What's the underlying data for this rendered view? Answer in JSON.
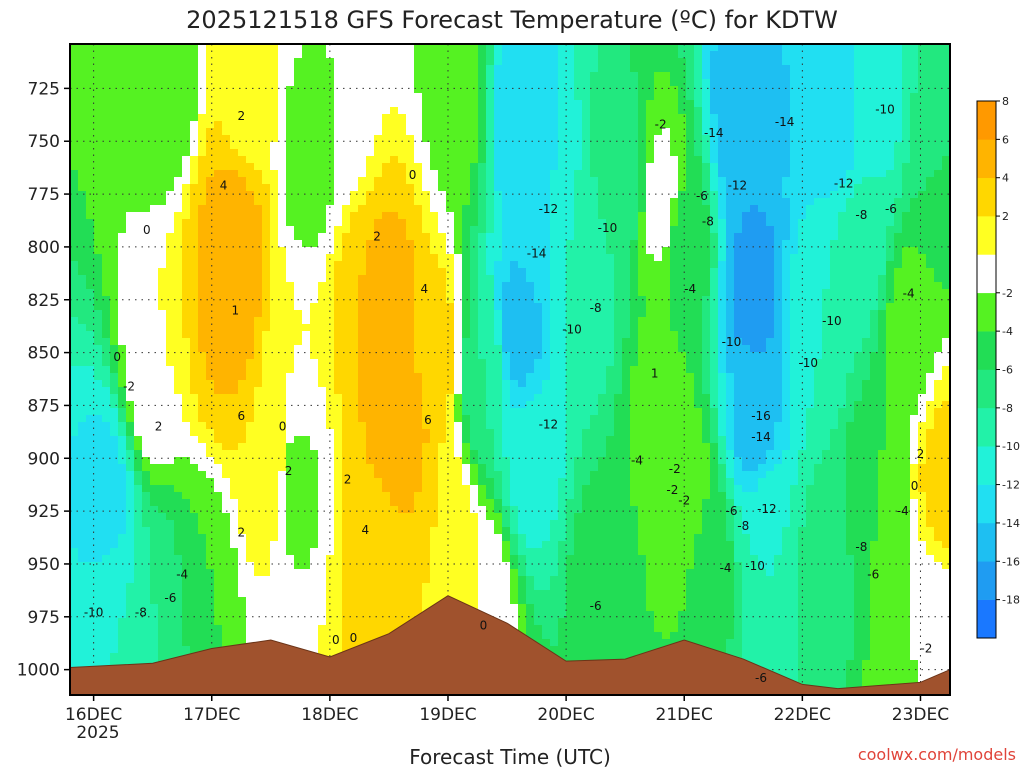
{
  "chart_data": {
    "type": "heatmap",
    "title": "2025121518 GFS Forecast Temperature (ºC) for KDTW",
    "xlabel": "Forecast Time (UTC)",
    "credit": "coolwx.com/models",
    "y_axis": {
      "label": "",
      "ticks": [
        725,
        750,
        775,
        800,
        825,
        850,
        875,
        900,
        925,
        950,
        975,
        1000
      ],
      "range": [
        1012,
        704
      ]
    },
    "x_axis": {
      "ticks": [
        "16DEC",
        "17DEC",
        "18DEC",
        "19DEC",
        "20DEC",
        "21DEC",
        "22DEC",
        "23DEC"
      ],
      "year_label": "2025",
      "range_days": [
        -0.2,
        7.25
      ]
    },
    "colorbar": {
      "levels": [
        -20,
        -18,
        -16,
        -14,
        -12,
        -10,
        -8,
        -6,
        -4,
        -2,
        0,
        2,
        4,
        6,
        8,
        10
      ],
      "tick_labels": [
        -18,
        -16,
        -14,
        -12,
        -10,
        -8,
        -6,
        -4,
        -2,
        2,
        4,
        6,
        8
      ],
      "colors": [
        "#1a78ff",
        "#1f9cf2",
        "#1ebff2",
        "#21dff2",
        "#21f2d9",
        "#22f2a8",
        "#22e87f",
        "#22dd55",
        "#55f222",
        "#ffffff",
        "#ffff22",
        "#ffd700",
        "#ffb400",
        "#ff9900"
      ]
    },
    "terrain_color": "#a0522d",
    "surface_pressure": {
      "t": [
        -0.2,
        0.5,
        1.0,
        1.5,
        2.0,
        2.5,
        3.0,
        3.5,
        4.0,
        4.5,
        5.0,
        5.5,
        6.0,
        6.3,
        7.0,
        7.25
      ],
      "p": [
        999,
        997,
        990,
        986,
        994,
        983,
        965,
        978,
        996,
        995,
        986,
        995,
        1007,
        1009,
        1006,
        1000
      ]
    },
    "temperature_points": [
      {
        "t": 0.1,
        "p": 920,
        "temp": -13
      },
      {
        "t": 0.2,
        "p": 975,
        "temp": -10
      },
      {
        "t": 0.6,
        "p": 975,
        "temp": -8
      },
      {
        "t": 0.6,
        "p": 720,
        "temp": -4
      },
      {
        "t": 0.5,
        "p": 860,
        "temp": 0
      },
      {
        "t": 0.9,
        "p": 960,
        "temp": -4
      },
      {
        "t": 1.1,
        "p": 835,
        "temp": 4
      },
      {
        "t": 1.15,
        "p": 820,
        "temp": 6
      },
      {
        "t": 1.2,
        "p": 795,
        "temp": 5
      },
      {
        "t": 1.3,
        "p": 730,
        "temp": 1
      },
      {
        "t": 1.5,
        "p": 900,
        "temp": 2
      },
      {
        "t": 1.7,
        "p": 860,
        "temp": 0
      },
      {
        "t": 1.8,
        "p": 760,
        "temp": -3
      },
      {
        "t": 1.7,
        "p": 910,
        "temp": -3
      },
      {
        "t": 2.1,
        "p": 730,
        "temp": -2
      },
      {
        "t": 2.3,
        "p": 830,
        "temp": 4
      },
      {
        "t": 2.5,
        "p": 830,
        "temp": 5
      },
      {
        "t": 2.6,
        "p": 880,
        "temp": 6
      },
      {
        "t": 2.4,
        "p": 950,
        "temp": 3
      },
      {
        "t": 2.9,
        "p": 850,
        "temp": 3
      },
      {
        "t": 3.0,
        "p": 940,
        "temp": 2
      },
      {
        "t": 3.1,
        "p": 730,
        "temp": -3
      },
      {
        "t": 3.3,
        "p": 970,
        "temp": 0
      },
      {
        "t": 3.3,
        "p": 860,
        "temp": -8
      },
      {
        "t": 3.6,
        "p": 740,
        "temp": -14
      },
      {
        "t": 3.6,
        "p": 840,
        "temp": -15
      },
      {
        "t": 3.7,
        "p": 900,
        "temp": -11
      },
      {
        "t": 3.8,
        "p": 780,
        "temp": -12
      },
      {
        "t": 4.2,
        "p": 820,
        "temp": -9
      },
      {
        "t": 4.3,
        "p": 960,
        "temp": -5
      },
      {
        "t": 4.5,
        "p": 770,
        "temp": -7
      },
      {
        "t": 4.8,
        "p": 880,
        "temp": -3
      },
      {
        "t": 4.8,
        "p": 780,
        "temp": -1
      },
      {
        "t": 5.0,
        "p": 800,
        "temp": -5
      },
      {
        "t": 5.0,
        "p": 920,
        "temp": -2
      },
      {
        "t": 5.2,
        "p": 950,
        "temp": -5
      },
      {
        "t": 5.5,
        "p": 740,
        "temp": -16
      },
      {
        "t": 5.6,
        "p": 820,
        "temp": -17
      },
      {
        "t": 5.6,
        "p": 880,
        "temp": -15
      },
      {
        "t": 5.8,
        "p": 730,
        "temp": -14
      },
      {
        "t": 5.7,
        "p": 940,
        "temp": -10
      },
      {
        "t": 6.1,
        "p": 840,
        "temp": -10
      },
      {
        "t": 6.3,
        "p": 740,
        "temp": -13
      },
      {
        "t": 6.2,
        "p": 950,
        "temp": -7
      },
      {
        "t": 6.5,
        "p": 800,
        "temp": -9
      },
      {
        "t": 6.6,
        "p": 730,
        "temp": -11
      },
      {
        "t": 6.6,
        "p": 920,
        "temp": -4
      },
      {
        "t": 6.9,
        "p": 980,
        "temp": -2
      },
      {
        "t": 6.9,
        "p": 840,
        "temp": -3
      },
      {
        "t": 7.2,
        "p": 910,
        "temp": 3
      },
      {
        "t": 7.2,
        "p": 990,
        "temp": -2
      },
      {
        "t": 7.2,
        "p": 760,
        "temp": -6
      }
    ],
    "contour_labels": [
      {
        "t": 1.25,
        "p": 738,
        "text": "2"
      },
      {
        "t": 1.1,
        "p": 771,
        "text": "4"
      },
      {
        "t": 0.45,
        "p": 792,
        "text": "0"
      },
      {
        "t": 1.2,
        "p": 830,
        "text": "1"
      },
      {
        "t": 0.2,
        "p": 852,
        "text": "0"
      },
      {
        "t": 0.3,
        "p": 866,
        "text": "-2"
      },
      {
        "t": 0.55,
        "p": 885,
        "text": "2"
      },
      {
        "t": 1.25,
        "p": 880,
        "text": "6"
      },
      {
        "t": 1.25,
        "p": 935,
        "text": "2"
      },
      {
        "t": 1.6,
        "p": 885,
        "text": "0"
      },
      {
        "t": 1.65,
        "p": 906,
        "text": "2"
      },
      {
        "t": 2.7,
        "p": 766,
        "text": "0"
      },
      {
        "t": 2.4,
        "p": 795,
        "text": "2"
      },
      {
        "t": 2.8,
        "p": 820,
        "text": "4"
      },
      {
        "t": 2.15,
        "p": 910,
        "text": "2"
      },
      {
        "t": 2.3,
        "p": 934,
        "text": "4"
      },
      {
        "t": 2.83,
        "p": 882,
        "text": "6"
      },
      {
        "t": 0.65,
        "p": 966,
        "text": "-6"
      },
      {
        "t": 0.75,
        "p": 955,
        "text": "-4"
      },
      {
        "t": 0.4,
        "p": 973,
        "text": "-8"
      },
      {
        "t": 0.0,
        "p": 973,
        "text": "-10"
      },
      {
        "t": 2.05,
        "p": 986,
        "text": "0"
      },
      {
        "t": 2.2,
        "p": 985,
        "text": "0"
      },
      {
        "t": 3.3,
        "p": 979,
        "text": "0"
      },
      {
        "t": 3.85,
        "p": 782,
        "text": "-12"
      },
      {
        "t": 3.75,
        "p": 803,
        "text": "-14"
      },
      {
        "t": 4.35,
        "p": 791,
        "text": "-10"
      },
      {
        "t": 4.25,
        "p": 829,
        "text": "-8"
      },
      {
        "t": 4.05,
        "p": 839,
        "text": "-10"
      },
      {
        "t": 3.85,
        "p": 884,
        "text": "-12"
      },
      {
        "t": 4.6,
        "p": 901,
        "text": "-4"
      },
      {
        "t": 4.25,
        "p": 970,
        "text": "-6"
      },
      {
        "t": 4.8,
        "p": 742,
        "text": "-2"
      },
      {
        "t": 5.25,
        "p": 746,
        "text": "-14"
      },
      {
        "t": 5.15,
        "p": 776,
        "text": "-6"
      },
      {
        "t": 5.2,
        "p": 788,
        "text": "-8"
      },
      {
        "t": 5.45,
        "p": 771,
        "text": "-12"
      },
      {
        "t": 5.05,
        "p": 820,
        "text": "-4"
      },
      {
        "t": 5.4,
        "p": 845,
        "text": "-10"
      },
      {
        "t": 4.92,
        "p": 905,
        "text": "-2"
      },
      {
        "t": 5.0,
        "p": 920,
        "text": "-2"
      },
      {
        "t": 5.4,
        "p": 925,
        "text": "-6"
      },
      {
        "t": 5.5,
        "p": 932,
        "text": "-8"
      },
      {
        "t": 5.7,
        "p": 924,
        "text": "-12"
      },
      {
        "t": 5.35,
        "p": 952,
        "text": "-4"
      },
      {
        "t": 5.6,
        "p": 951,
        "text": "-10"
      },
      {
        "t": 5.65,
        "p": 890,
        "text": "-14"
      },
      {
        "t": 5.65,
        "p": 880,
        "text": "-16"
      },
      {
        "t": 5.85,
        "p": 741,
        "text": "-14"
      },
      {
        "t": 6.05,
        "p": 855,
        "text": "-10"
      },
      {
        "t": 6.25,
        "p": 835,
        "text": "-10"
      },
      {
        "t": 6.35,
        "p": 770,
        "text": "-12"
      },
      {
        "t": 6.7,
        "p": 735,
        "text": "-10"
      },
      {
        "t": 6.5,
        "p": 785,
        "text": "-8"
      },
      {
        "t": 6.75,
        "p": 782,
        "text": "-6"
      },
      {
        "t": 6.5,
        "p": 942,
        "text": "-8"
      },
      {
        "t": 6.6,
        "p": 955,
        "text": "-6"
      },
      {
        "t": 6.85,
        "p": 925,
        "text": "-4"
      },
      {
        "t": 6.9,
        "p": 822,
        "text": "-4"
      },
      {
        "t": 5.65,
        "p": 1004,
        "text": "-6"
      },
      {
        "t": 7.05,
        "p": 990,
        "text": "-2"
      },
      {
        "t": 7.0,
        "p": 898,
        "text": "2"
      },
      {
        "t": 6.95,
        "p": 913,
        "text": "0"
      },
      {
        "t": 4.9,
        "p": 915,
        "text": "-2"
      },
      {
        "t": 4.75,
        "p": 860,
        "text": "1"
      }
    ]
  }
}
